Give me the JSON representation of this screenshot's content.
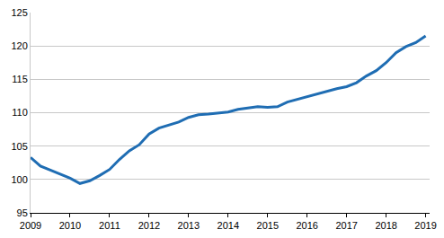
{
  "chart_data": {
    "type": "line",
    "x": [
      2009.0,
      2009.25,
      2009.5,
      2009.75,
      2010.0,
      2010.25,
      2010.5,
      2010.75,
      2011.0,
      2011.25,
      2011.5,
      2011.75,
      2012.0,
      2012.25,
      2012.5,
      2012.75,
      2013.0,
      2013.25,
      2013.5,
      2013.75,
      2014.0,
      2014.25,
      2014.5,
      2014.75,
      2015.0,
      2015.25,
      2015.5,
      2015.75,
      2016.0,
      2016.25,
      2016.5,
      2016.75,
      2017.0,
      2017.25,
      2017.5,
      2017.75,
      2018.0,
      2018.25,
      2018.5,
      2018.75,
      2019.0
    ],
    "values": [
      103.3,
      102.0,
      101.4,
      100.8,
      100.2,
      99.4,
      99.8,
      100.6,
      101.5,
      103.0,
      104.3,
      105.2,
      106.8,
      107.7,
      108.1,
      108.6,
      109.3,
      109.7,
      109.8,
      109.9,
      110.1,
      110.5,
      110.7,
      110.9,
      110.8,
      110.9,
      111.6,
      112.0,
      112.3,
      112.8,
      113.1,
      113.6,
      113.9,
      114.5,
      115.5,
      116.3,
      117.5,
      119.0,
      119.9,
      120.5,
      121.5
    ],
    "color": "#1f6db3",
    "xlim": [
      2009,
      2019.1
    ],
    "xticks": [
      2009,
      2010,
      2011,
      2012,
      2013,
      2014,
      2015,
      2016,
      2017,
      2018,
      2019
    ],
    "ylim": [
      95,
      125
    ],
    "yticks": [
      95,
      100,
      105,
      110,
      115,
      120,
      125
    ],
    "grid": true
  }
}
